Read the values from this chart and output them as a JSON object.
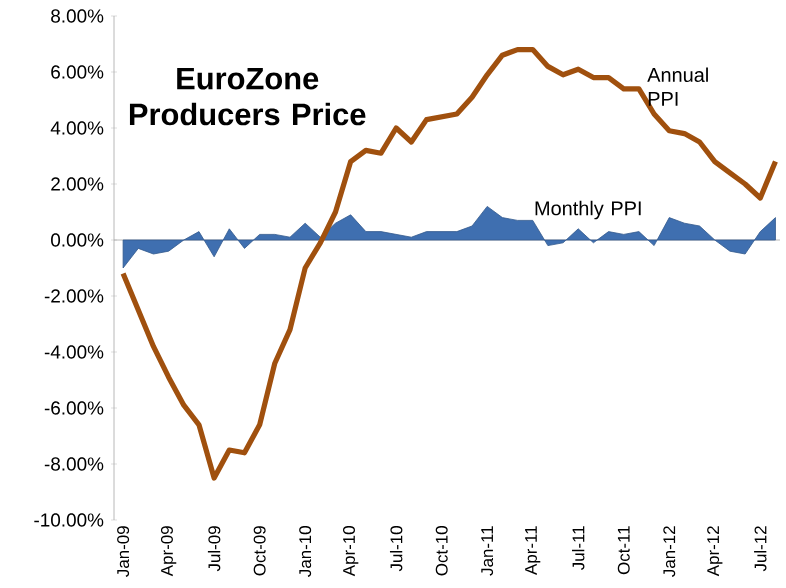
{
  "chart_data": {
    "type": "line",
    "title": "EuroZone Producers Price",
    "categories": [
      "Jan-09",
      null,
      null,
      "Apr-09",
      null,
      null,
      "Jul-09",
      null,
      null,
      "Oct-09",
      null,
      null,
      "Jan-10",
      null,
      null,
      "Apr-10",
      null,
      null,
      "Jul-10",
      null,
      null,
      "Oct-10",
      null,
      null,
      "Jan-11",
      null,
      null,
      "Apr-11",
      null,
      null,
      "Jul-11",
      null,
      null,
      "Oct-11",
      null,
      null,
      "Jan-12",
      null,
      null,
      "Apr-12",
      null,
      null,
      "Jul-12",
      null
    ],
    "series": [
      {
        "name": "Monthly PPI",
        "type": "area",
        "color": "#3f6fb0",
        "values": [
          -1.0,
          -0.3,
          -0.5,
          -0.4,
          0.0,
          0.3,
          -0.6,
          0.4,
          -0.3,
          0.2,
          0.2,
          0.1,
          0.6,
          0.1,
          0.6,
          0.9,
          0.3,
          0.3,
          0.2,
          0.1,
          0.3,
          0.3,
          0.3,
          0.5,
          1.2,
          0.8,
          0.7,
          0.7,
          -0.2,
          -0.1,
          0.4,
          -0.1,
          0.3,
          0.2,
          0.3,
          -0.2,
          0.8,
          0.6,
          0.5,
          0.0,
          -0.4,
          -0.5,
          0.3,
          0.8
        ]
      },
      {
        "name": "Annual PPI",
        "type": "line",
        "color": "#a0500e",
        "values": [
          -1.2,
          -2.5,
          -3.8,
          -4.9,
          -5.9,
          -6.6,
          -8.5,
          -7.5,
          -7.6,
          -6.6,
          -4.4,
          -3.2,
          -1.0,
          -0.1,
          1.0,
          2.8,
          3.2,
          3.1,
          4.0,
          3.5,
          4.3,
          4.4,
          4.5,
          5.1,
          5.9,
          6.6,
          6.8,
          6.8,
          6.2,
          5.9,
          6.1,
          5.8,
          5.8,
          5.4,
          5.4,
          4.5,
          3.9,
          3.8,
          3.5,
          2.8,
          2.4,
          2.0,
          1.5,
          2.8
        ]
      }
    ],
    "ylim": [
      -10,
      8
    ],
    "yticks": [
      {
        "value": -10,
        "label": "-10.00%"
      },
      {
        "value": -8,
        "label": "-8.00%"
      },
      {
        "value": -6,
        "label": "-6.00%"
      },
      {
        "value": -4,
        "label": "-4.00%"
      },
      {
        "value": -2,
        "label": "-2.00%"
      },
      {
        "value": 0,
        "label": "0.00%"
      },
      {
        "value": 2,
        "label": "2.00%"
      },
      {
        "value": 4,
        "label": "4.00%"
      },
      {
        "value": 6,
        "label": "6.00%"
      },
      {
        "value": 8,
        "label": "8.00%"
      }
    ],
    "legend": false,
    "marker": "none",
    "line_style": "solid"
  }
}
